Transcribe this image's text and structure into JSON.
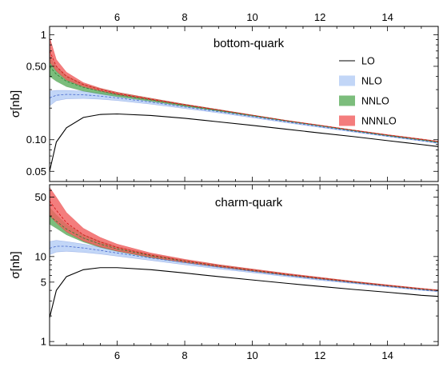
{
  "chart_data": [
    {
      "type": "area",
      "panel": "top",
      "title": "bottom-quark",
      "ylabel": "σ[nb]",
      "yscale": "log",
      "xlim": [
        4.0,
        15.5
      ],
      "ylim": [
        0.04,
        1.2
      ],
      "x_ticks": [
        6,
        8,
        10,
        12,
        14
      ],
      "x_tick_labels_top": [
        "6",
        "8",
        "10",
        "12",
        "14"
      ],
      "y_ticks": [
        0.05,
        0.1,
        0.5,
        1
      ],
      "y_tick_labels": [
        "0.05",
        "0.10",
        "0.50",
        "1"
      ],
      "legend": {
        "position": "top-right",
        "entries": [
          "LO",
          "NLO",
          "NNLO",
          "NNNLO"
        ]
      },
      "series": [
        {
          "name": "LO",
          "kind": "line",
          "color": "#000000",
          "x": [
            4.0,
            4.2,
            4.5,
            5.0,
            5.5,
            6.0,
            7.0,
            8.0,
            9.0,
            10.0,
            11.0,
            12.0,
            13.0,
            14.0,
            15.0,
            15.5
          ],
          "y": [
            0.05,
            0.095,
            0.13,
            0.163,
            0.174,
            0.176,
            0.17,
            0.16,
            0.148,
            0.137,
            0.126,
            0.116,
            0.107,
            0.098,
            0.09,
            0.086
          ]
        },
        {
          "name": "NLO",
          "kind": "band",
          "color": "#b4cdf5",
          "line_color": "#4466cc",
          "x": [
            4.0,
            4.2,
            4.5,
            5.0,
            5.5,
            6.0,
            7.0,
            8.0,
            9.0,
            10.0,
            11.0,
            12.0,
            13.0,
            14.0,
            15.0,
            15.5
          ],
          "center": [
            0.25,
            0.265,
            0.27,
            0.268,
            0.26,
            0.25,
            0.228,
            0.205,
            0.185,
            0.166,
            0.148,
            0.133,
            0.12,
            0.108,
            0.098,
            0.093
          ],
          "low": [
            0.21,
            0.235,
            0.245,
            0.247,
            0.243,
            0.236,
            0.218,
            0.198,
            0.18,
            0.162,
            0.145,
            0.131,
            0.118,
            0.107,
            0.097,
            0.092
          ],
          "high": [
            0.29,
            0.295,
            0.295,
            0.29,
            0.28,
            0.268,
            0.24,
            0.213,
            0.191,
            0.17,
            0.151,
            0.136,
            0.122,
            0.11,
            0.1,
            0.095
          ]
        },
        {
          "name": "NNLO",
          "kind": "band",
          "color": "#5fae5f",
          "line_color": "#2e7d32",
          "x": [
            4.0,
            4.2,
            4.5,
            5.0,
            5.5,
            6.0,
            7.0,
            8.0,
            9.0,
            10.0,
            11.0,
            12.0,
            13.0,
            14.0,
            15.0,
            15.5
          ],
          "center": [
            0.5,
            0.42,
            0.36,
            0.315,
            0.29,
            0.27,
            0.24,
            0.213,
            0.19,
            0.17,
            0.151,
            0.136,
            0.122,
            0.11,
            0.1,
            0.095
          ],
          "low": [
            0.4,
            0.36,
            0.32,
            0.29,
            0.272,
            0.257,
            0.232,
            0.208,
            0.187,
            0.168,
            0.15,
            0.135,
            0.121,
            0.109,
            0.099,
            0.094
          ],
          "high": [
            0.62,
            0.5,
            0.41,
            0.34,
            0.308,
            0.283,
            0.248,
            0.218,
            0.194,
            0.172,
            0.153,
            0.137,
            0.123,
            0.111,
            0.101,
            0.096
          ]
        },
        {
          "name": "NNNLO",
          "kind": "band",
          "color": "#f26060",
          "line_color": "#d01010",
          "x": [
            4.0,
            4.2,
            4.5,
            5.0,
            5.5,
            6.0,
            7.0,
            8.0,
            9.0,
            10.0,
            11.0,
            12.0,
            13.0,
            14.0,
            15.0,
            15.5
          ],
          "center": [
            0.7,
            0.5,
            0.4,
            0.335,
            0.3,
            0.275,
            0.243,
            0.215,
            0.192,
            0.171,
            0.152,
            0.137,
            0.123,
            0.111,
            0.101,
            0.096
          ],
          "low": [
            0.55,
            0.45,
            0.37,
            0.32,
            0.29,
            0.268,
            0.238,
            0.212,
            0.19,
            0.17,
            0.151,
            0.136,
            0.122,
            0.11,
            0.1,
            0.095
          ],
          "high": [
            0.95,
            0.58,
            0.44,
            0.35,
            0.31,
            0.283,
            0.248,
            0.218,
            0.194,
            0.172,
            0.153,
            0.138,
            0.124,
            0.112,
            0.102,
            0.097
          ]
        }
      ]
    },
    {
      "type": "area",
      "panel": "bottom",
      "title": "charm-quark",
      "ylabel": "σ[nb]",
      "yscale": "log",
      "xlim": [
        4.0,
        15.5
      ],
      "ylim": [
        0.9,
        70
      ],
      "x_ticks": [
        6,
        8,
        10,
        12,
        14
      ],
      "x_tick_labels": [
        "6",
        "8",
        "10",
        "12",
        "14"
      ],
      "y_ticks": [
        1,
        5,
        10,
        50
      ],
      "y_tick_labels": [
        "1",
        "5",
        "10",
        "50"
      ],
      "series": [
        {
          "name": "LO",
          "kind": "line",
          "color": "#000000",
          "x": [
            4.0,
            4.2,
            4.5,
            5.0,
            5.5,
            6.0,
            7.0,
            8.0,
            9.0,
            10.0,
            11.0,
            12.0,
            13.0,
            14.0,
            15.0,
            15.5
          ],
          "y": [
            1.9,
            4.0,
            5.8,
            7.0,
            7.4,
            7.4,
            7.0,
            6.4,
            5.8,
            5.3,
            4.85,
            4.45,
            4.1,
            3.8,
            3.5,
            3.4
          ]
        },
        {
          "name": "NLO",
          "kind": "band",
          "color": "#b4cdf5",
          "line_color": "#4466cc",
          "x": [
            4.0,
            4.2,
            4.5,
            5.0,
            5.5,
            6.0,
            7.0,
            8.0,
            9.0,
            10.0,
            11.0,
            12.0,
            13.0,
            14.0,
            15.0,
            15.5
          ],
          "center": [
            12.5,
            13.2,
            13.2,
            12.6,
            11.8,
            11.0,
            9.6,
            8.5,
            7.5,
            6.7,
            6.0,
            5.4,
            4.9,
            4.45,
            4.05,
            3.9
          ],
          "low": [
            10.5,
            11.3,
            11.5,
            11.2,
            10.7,
            10.1,
            9.0,
            8.0,
            7.15,
            6.45,
            5.8,
            5.25,
            4.8,
            4.38,
            4.0,
            3.85
          ],
          "high": [
            15.0,
            15.5,
            15.0,
            14.0,
            12.9,
            11.9,
            10.2,
            8.9,
            7.85,
            6.95,
            6.2,
            5.55,
            5.0,
            4.55,
            4.12,
            3.95
          ]
        },
        {
          "name": "NNLO",
          "kind": "band",
          "color": "#5fae5f",
          "line_color": "#2e7d32",
          "x": [
            4.0,
            4.2,
            4.5,
            5.0,
            5.5,
            6.0,
            7.0,
            8.0,
            9.0,
            10.0,
            11.0,
            12.0,
            13.0,
            14.0,
            15.0,
            15.5
          ],
          "center": [
            30,
            26,
            21,
            16.5,
            14,
            12.3,
            10.2,
            8.8,
            7.75,
            6.9,
            6.15,
            5.55,
            5.0,
            4.55,
            4.15,
            3.98
          ],
          "low": [
            24,
            21.5,
            18,
            14.8,
            12.8,
            11.5,
            9.7,
            8.45,
            7.5,
            6.7,
            6.0,
            5.42,
            4.92,
            4.48,
            4.1,
            3.93
          ],
          "high": [
            38,
            31,
            24,
            18.2,
            15.2,
            13.1,
            10.7,
            9.15,
            8.0,
            7.1,
            6.3,
            5.67,
            5.1,
            4.62,
            4.2,
            4.03
          ]
        },
        {
          "name": "NNNLO",
          "kind": "band",
          "color": "#f26060",
          "line_color": "#d01010",
          "x": [
            4.0,
            4.2,
            4.5,
            5.0,
            5.5,
            6.0,
            7.0,
            8.0,
            9.0,
            10.0,
            11.0,
            12.0,
            13.0,
            14.0,
            15.0,
            15.5
          ],
          "center": [
            45,
            35,
            25,
            18,
            14.8,
            12.8,
            10.4,
            8.9,
            7.8,
            6.95,
            6.2,
            5.58,
            5.03,
            4.58,
            4.18,
            4.0
          ],
          "low": [
            30,
            25,
            19.5,
            15.2,
            13.0,
            11.6,
            9.8,
            8.5,
            7.55,
            6.75,
            6.05,
            5.46,
            4.95,
            4.5,
            4.12,
            3.95
          ],
          "high": [
            65,
            50,
            33,
            21.5,
            16.8,
            14.0,
            11.0,
            9.3,
            8.05,
            7.15,
            6.35,
            5.7,
            5.12,
            4.65,
            4.24,
            4.06
          ]
        }
      ]
    }
  ]
}
